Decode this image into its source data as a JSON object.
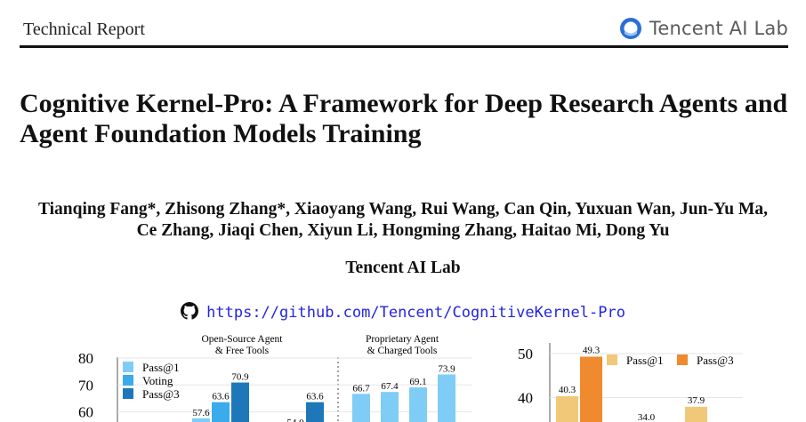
{
  "header": {
    "label": "Technical Report",
    "logo_text": "Tencent AI Lab"
  },
  "paper": {
    "title_line1": "Cognitive Kernel-Pro: A Framework for Deep Research Agents and",
    "title_line2": "Agent Foundation Models Training",
    "authors_line1": "Tianqing Fang*, Zhisong Zhang*, Xiaoyang Wang, Rui Wang, Can Qin, Yuxuan Wan, Jun-Yu Ma,",
    "authors_line2": "Ce Zhang, Jiaqi Chen, Xiyun Li, Hongming Zhang, Haitao Mi, Dong Yu",
    "affiliation": "Tencent AI Lab",
    "link": "https://github.com/Tencent/CognitiveKernel-Pro",
    "link_icon": "github-icon"
  },
  "chart_data": [
    {
      "type": "bar",
      "groups": [
        "Open-Source Agent\n& Free Tools",
        "Proprietary Agent\n& Charged Tools"
      ],
      "yticks": [
        60,
        70,
        80
      ],
      "series": [
        {
          "name": "Pass@1",
          "color": "#7fcdf6"
        },
        {
          "name": "Voting",
          "color": "#3aabeb"
        },
        {
          "name": "Pass@3",
          "color": "#1e77b8"
        }
      ],
      "bars": [
        {
          "value": 57.6,
          "series": 0,
          "label": "57.6"
        },
        {
          "value": 63.6,
          "series": 1,
          "label": "63.6"
        },
        {
          "value": 70.9,
          "series": 2,
          "label": "70.9"
        },
        {
          "value": 54.0,
          "series": 0,
          "label": "54.0"
        },
        {
          "value": 63.6,
          "series": 2,
          "label": "63.6"
        },
        {
          "value": 66.7,
          "series": 0,
          "label": "66.7"
        },
        {
          "value": 67.4,
          "series": 0,
          "label": "67.4"
        },
        {
          "value": 69.1,
          "series": 0,
          "label": "69.1"
        },
        {
          "value": 73.9,
          "series": 0,
          "label": "73.9"
        }
      ]
    },
    {
      "type": "bar",
      "yticks": [
        40,
        50
      ],
      "series": [
        {
          "name": "Pass@1",
          "color": "#f0c878"
        },
        {
          "name": "Pass@3",
          "color": "#ef8a2e"
        }
      ],
      "bars": [
        {
          "value": 40.3,
          "series": 0,
          "label": "40.3"
        },
        {
          "value": 49.3,
          "series": 1,
          "label": "49.3"
        },
        {
          "value": 34.0,
          "series": 0,
          "label": "34.0"
        },
        {
          "value": 37.9,
          "series": 0,
          "label": "37.9"
        }
      ]
    }
  ]
}
